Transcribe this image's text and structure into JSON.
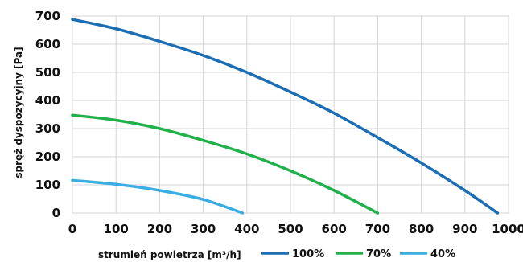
{
  "chart_data": {
    "type": "line",
    "title": "",
    "xlabel": "strumień powietrza [m³/h]",
    "ylabel": "spręż dyspozycyjny [Pa]",
    "xlim": [
      0,
      1000
    ],
    "ylim": [
      0,
      700
    ],
    "xticks": [
      "0",
      "100",
      "200",
      "300",
      "400",
      "500",
      "600",
      "700",
      "800",
      "900",
      "1000"
    ],
    "yticks": [
      "0",
      "100",
      "200",
      "300",
      "400",
      "500",
      "600",
      "700"
    ],
    "grid": true,
    "legend_position": "bottom-right",
    "series": [
      {
        "name": "100%",
        "color": "#1b6db4",
        "x": [
          0,
          100,
          200,
          300,
          400,
          500,
          600,
          700,
          800,
          900,
          975
        ],
        "y": [
          688,
          655,
          610,
          560,
          500,
          430,
          355,
          268,
          178,
          80,
          0
        ]
      },
      {
        "name": "70%",
        "color": "#21b14b",
        "x": [
          0,
          100,
          200,
          300,
          400,
          500,
          600,
          700
        ],
        "y": [
          348,
          330,
          300,
          258,
          210,
          150,
          80,
          0
        ]
      },
      {
        "name": "40%",
        "color": "#3aaee3",
        "x": [
          0,
          100,
          200,
          300,
          390
        ],
        "y": [
          116,
          102,
          80,
          48,
          0
        ]
      }
    ]
  }
}
